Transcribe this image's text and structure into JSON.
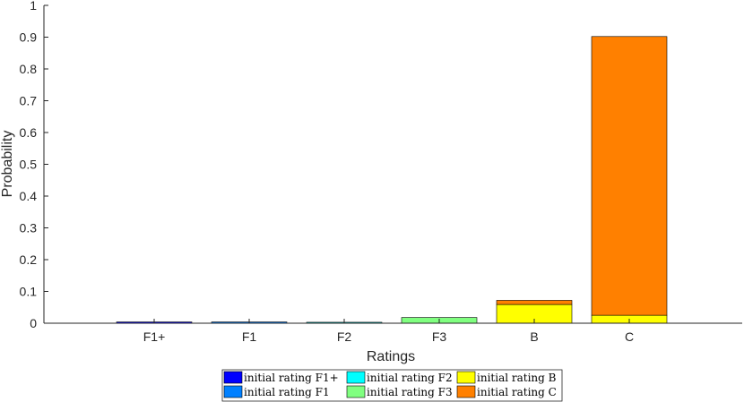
{
  "chart_data": {
    "type": "bar",
    "stacked": true,
    "categories": [
      "F1+",
      "F1",
      "F2",
      "F3",
      "B",
      "C"
    ],
    "xlabel": "Ratings",
    "ylabel": "Probability",
    "ylim": [
      0,
      1
    ],
    "yticks": [
      "0",
      "0.1",
      "0.2",
      "0.3",
      "0.4",
      "0.5",
      "0.6",
      "0.7",
      "0.8",
      "0.9",
      "1"
    ],
    "grid": false,
    "legend_position": "bottom",
    "series": [
      {
        "name": "initial rating F1+",
        "color": "#0000ff",
        "values": [
          0.004,
          0.0,
          0.0,
          0.0,
          0.0,
          0.0
        ]
      },
      {
        "name": "initial rating F1",
        "color": "#0080ff",
        "values": [
          0.0,
          0.004,
          0.0,
          0.0,
          0.0,
          0.0
        ]
      },
      {
        "name": "initial rating F2",
        "color": "#00ffff",
        "values": [
          0.0,
          0.0,
          0.003,
          0.0,
          0.0,
          0.0
        ]
      },
      {
        "name": "initial rating F3",
        "color": "#80ff80",
        "values": [
          0.0,
          0.0,
          0.0,
          0.018,
          0.0,
          0.0
        ]
      },
      {
        "name": "initial rating B",
        "color": "#ffff00",
        "values": [
          0.0,
          0.0,
          0.0,
          0.0,
          0.059,
          0.025
        ]
      },
      {
        "name": "initial rating C",
        "color": "#ff8000",
        "values": [
          0.0,
          0.0,
          0.0,
          0.0,
          0.013,
          0.877
        ]
      }
    ]
  }
}
